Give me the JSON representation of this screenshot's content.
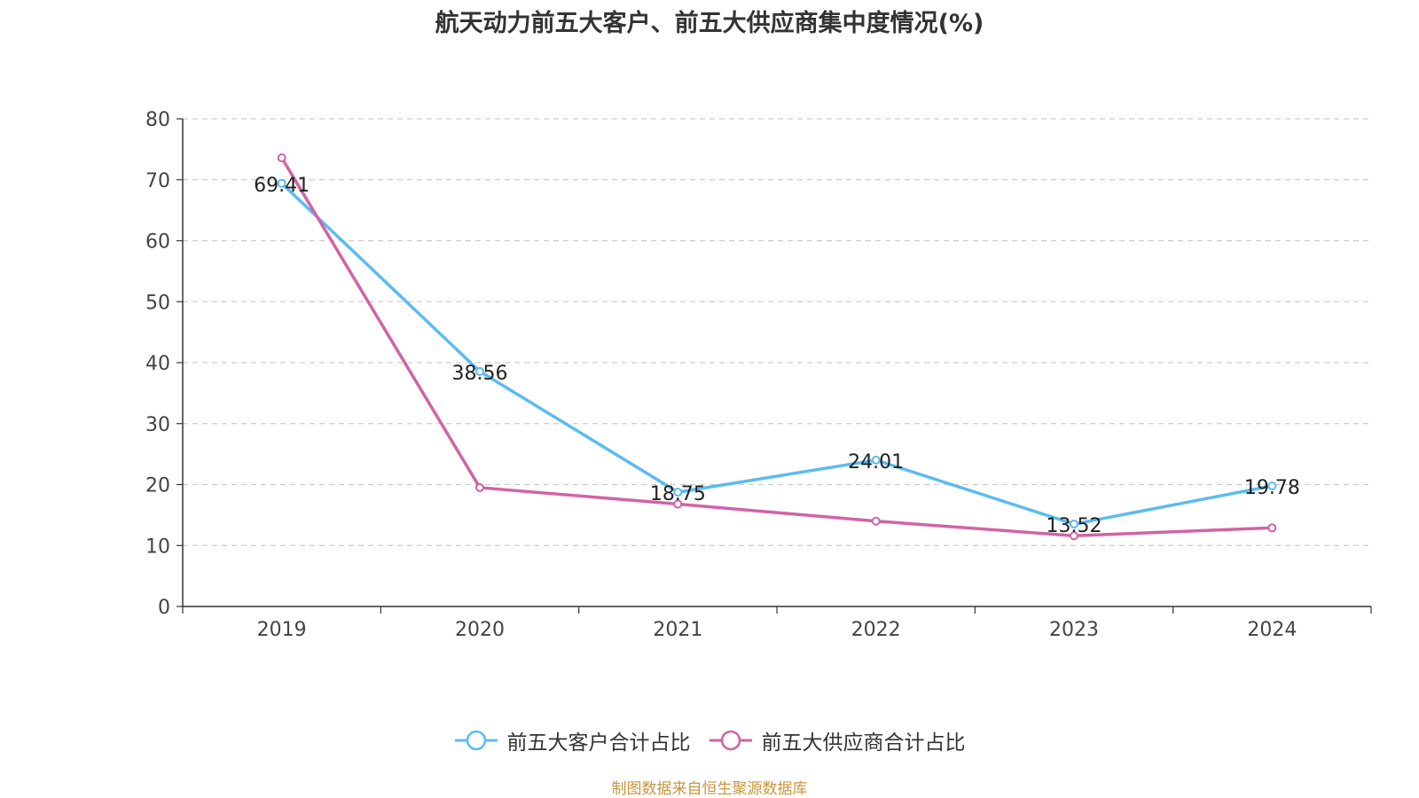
{
  "chart_data": {
    "type": "line",
    "title": "航天动力前五大客户、前五大供应商集中度情况(%)",
    "categories": [
      "2019",
      "2020",
      "2021",
      "2022",
      "2023",
      "2024"
    ],
    "series": [
      {
        "name": "前五大客户合计占比",
        "color": "#5bbcf0",
        "values": [
          69.41,
          38.56,
          18.75,
          24.01,
          13.52,
          19.78
        ],
        "show_labels": true
      },
      {
        "name": "前五大供应商合计占比",
        "color": "#d163a6",
        "values": [
          73.6,
          19.5,
          16.8,
          14.0,
          11.6,
          12.9
        ],
        "show_labels": false
      }
    ],
    "ylim": [
      0,
      80
    ],
    "yticks": [
      0,
      10,
      20,
      30,
      40,
      50,
      60,
      70,
      80
    ],
    "grid": true,
    "legend": "bottom-center"
  },
  "source_note": "制图数据来自恒生聚源数据库"
}
